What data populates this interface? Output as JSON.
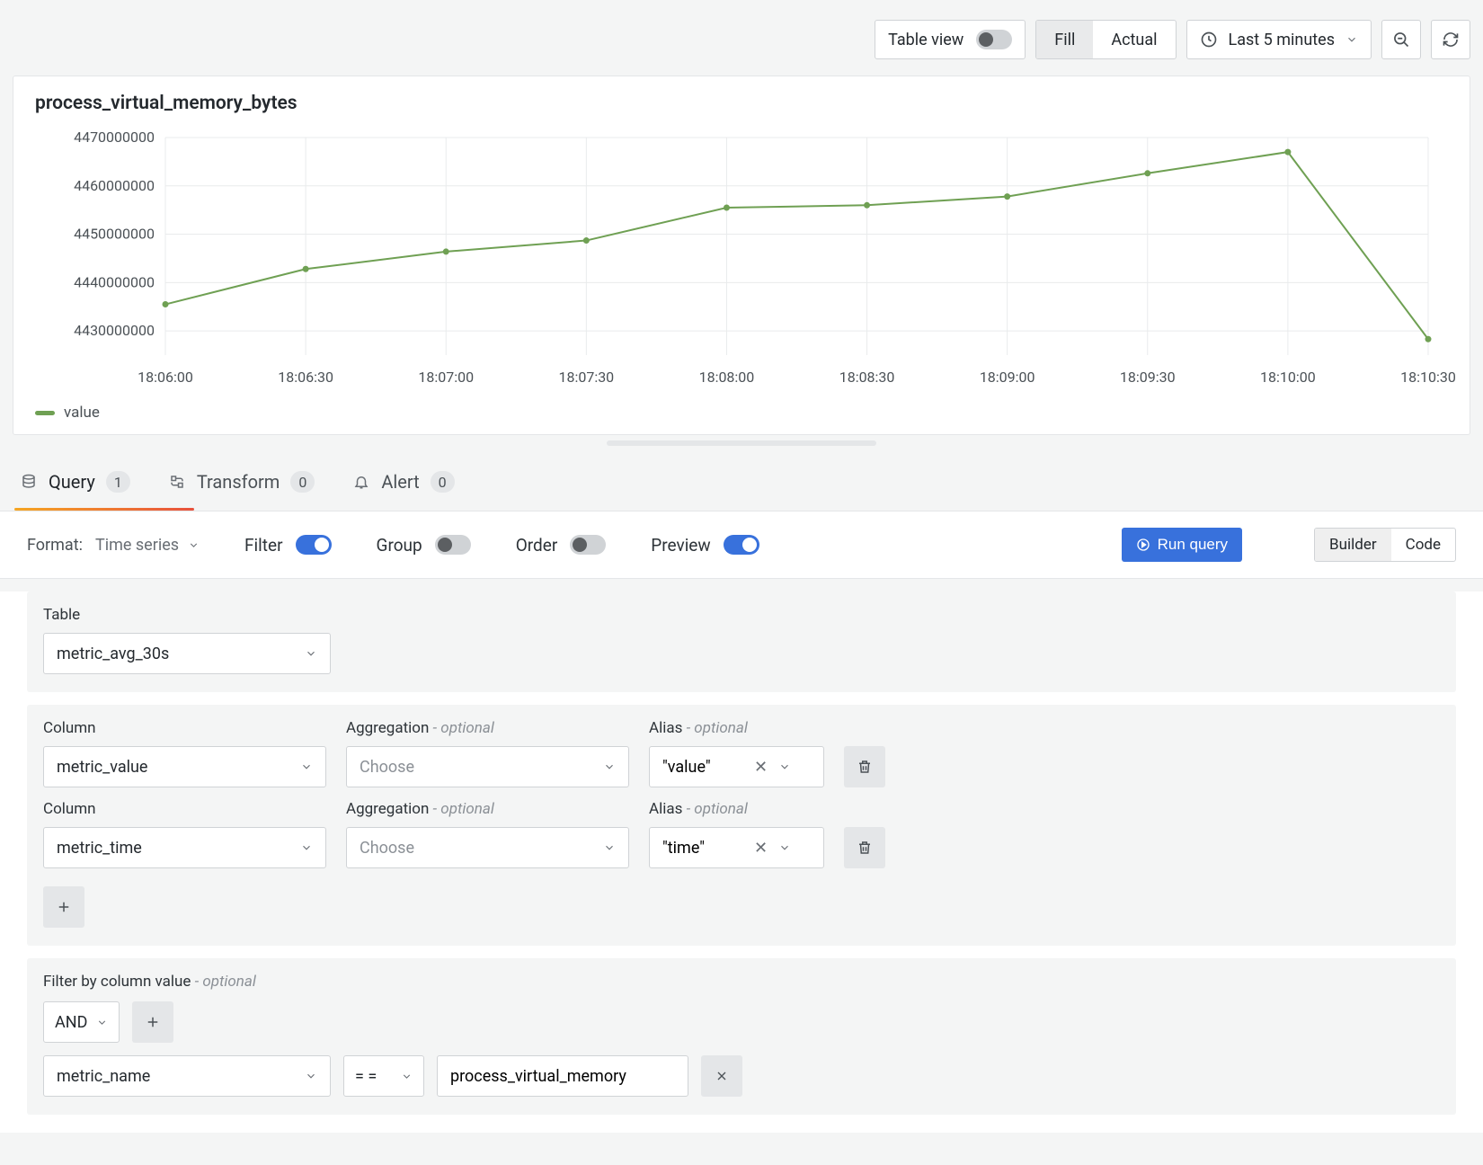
{
  "toolbar": {
    "table_view_label": "Table view",
    "fill_label": "Fill",
    "actual_label": "Actual",
    "time_range": "Last 5 minutes"
  },
  "chart": {
    "title": "process_virtual_memory_bytes",
    "legend_label": "value",
    "line_color": "#6fa053",
    "grid_color": "#e9ebec",
    "axis_text_color": "#4b5156",
    "y_ticks": [
      "4430000000",
      "4440000000",
      "4450000000",
      "4460000000",
      "4470000000"
    ],
    "y_min": 4425000000,
    "y_max": 4470000000,
    "x_labels": [
      "18:06:00",
      "18:06:30",
      "18:07:00",
      "18:07:30",
      "18:08:00",
      "18:08:30",
      "18:09:00",
      "18:09:30",
      "18:10:00",
      "18:10:30"
    ],
    "points": [
      {
        "x": 0,
        "y": 4435500000
      },
      {
        "x": 1,
        "y": 4442800000
      },
      {
        "x": 2,
        "y": 4446400000
      },
      {
        "x": 3,
        "y": 4448700000
      },
      {
        "x": 4,
        "y": 4455500000
      },
      {
        "x": 5,
        "y": 4456000000
      },
      {
        "x": 6,
        "y": 4457800000
      },
      {
        "x": 7,
        "y": 4462600000
      },
      {
        "x": 8,
        "y": 4467000000
      },
      {
        "x": 9,
        "y": 4428300000
      }
    ]
  },
  "tabs": {
    "query_label": "Query",
    "query_count": "1",
    "transform_label": "Transform",
    "transform_count": "0",
    "alert_label": "Alert",
    "alert_count": "0"
  },
  "query_bar": {
    "format_label": "Format:",
    "format_value": "Time series",
    "filter_label": "Filter",
    "group_label": "Group",
    "order_label": "Order",
    "preview_label": "Preview",
    "run_label": "Run query",
    "builder_label": "Builder",
    "code_label": "Code"
  },
  "table_section": {
    "label": "Table",
    "value": "metric_avg_30s"
  },
  "columns": {
    "column_label": "Column",
    "aggregation_label": "Aggregation",
    "alias_label": "Alias",
    "optional": " - optional",
    "agg_placeholder": "Choose",
    "rows": [
      {
        "column": "metric_value",
        "alias": "\"value\""
      },
      {
        "column": "metric_time",
        "alias": "\"time\""
      }
    ]
  },
  "filter_section": {
    "label": "Filter by column value",
    "optional": " - optional",
    "conj": "AND",
    "column": "metric_name",
    "op": "= =",
    "value": "process_virtual_memory"
  },
  "colors": {
    "accent": "#3871dc"
  }
}
